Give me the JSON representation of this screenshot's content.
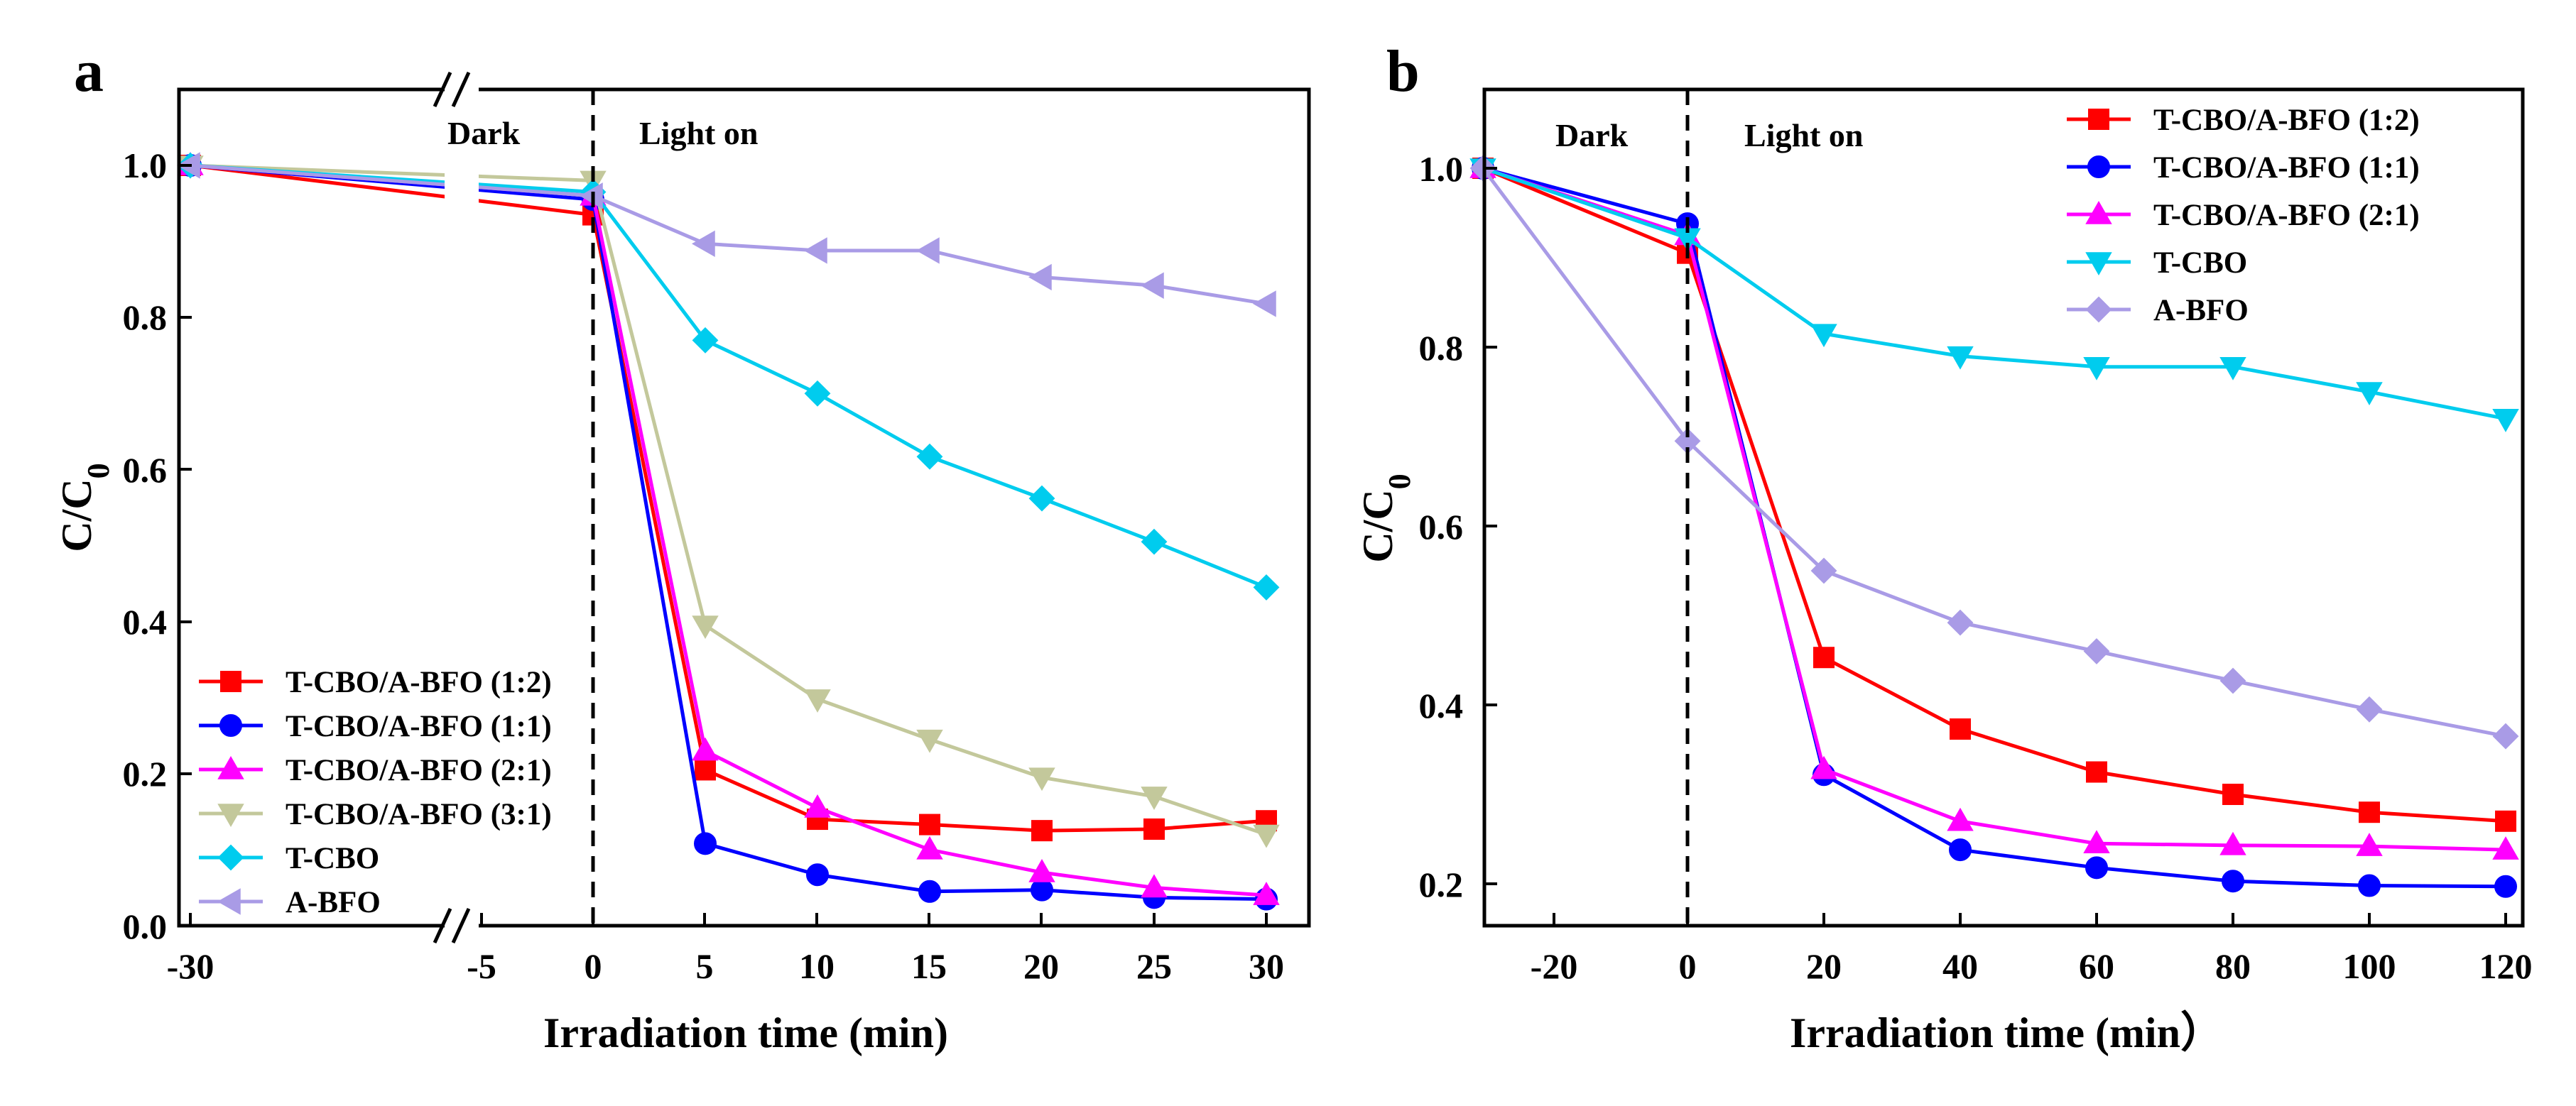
{
  "chart_data": [
    {
      "panel": "a",
      "type": "line",
      "xlabel": "Irradiation time (min)",
      "ylabel": "C/C0",
      "ylim": [
        0,
        1.1
      ],
      "y_ticks": [
        "0.0",
        "0.2",
        "0.4",
        "0.6",
        "0.8",
        "1.0"
      ],
      "x_ticks": [
        "-30",
        "-5",
        "0",
        "5",
        "10",
        "15",
        "20",
        "25",
        "30"
      ],
      "axis_break": "-30 to -5",
      "annotations": [
        "Dark",
        "Light on"
      ],
      "legend_position": "lower-left",
      "x": [
        -30,
        0,
        5,
        10,
        15,
        20,
        25,
        30
      ],
      "series": [
        {
          "name": "T-CBO/A-BFO (1:2)",
          "color": "#ff0000",
          "marker": "square",
          "values": [
            1.0,
            0.935,
            0.205,
            0.14,
            0.133,
            0.125,
            0.127,
            0.138
          ]
        },
        {
          "name": "T-CBO/A-BFO (1:1)",
          "color": "#0000ff",
          "marker": "circle",
          "values": [
            1.0,
            0.955,
            0.108,
            0.067,
            0.045,
            0.047,
            0.037,
            0.035
          ]
        },
        {
          "name": "T-CBO/A-BFO (2:1)",
          "color": "#ff00ff",
          "marker": "triangle-up",
          "values": [
            1.0,
            0.96,
            0.23,
            0.155,
            0.1,
            0.07,
            0.05,
            0.04
          ]
        },
        {
          "name": "T-CBO/A-BFO (3:1)",
          "color": "#c3c89b",
          "marker": "triangle-down",
          "values": [
            1.0,
            0.98,
            0.395,
            0.298,
            0.245,
            0.195,
            0.17,
            0.12
          ]
        },
        {
          "name": "T-CBO",
          "color": "#00ccee",
          "marker": "diamond",
          "values": [
            1.0,
            0.965,
            0.77,
            0.7,
            0.617,
            0.562,
            0.505,
            0.445
          ]
        },
        {
          "name": "A-BFO",
          "color": "#a99be6",
          "marker": "triangle-left",
          "values": [
            1.0,
            0.96,
            0.897,
            0.888,
            0.888,
            0.853,
            0.842,
            0.818
          ]
        }
      ]
    },
    {
      "panel": "b",
      "type": "line",
      "xlabel": "Irradiation time (min）",
      "ylabel": "C/C0",
      "ylim": [
        0.15,
        1.1
      ],
      "xlim": [
        -30,
        122
      ],
      "y_ticks": [
        "0.2",
        "0.4",
        "0.6",
        "0.8",
        "1.0"
      ],
      "x_ticks": [
        "-20",
        "0",
        "20",
        "40",
        "60",
        "80",
        "100",
        "120"
      ],
      "annotations": [
        "Dark",
        "Light on"
      ],
      "legend_position": "top-right",
      "x": [
        -30,
        0,
        20,
        40,
        60,
        80,
        100,
        120
      ],
      "series": [
        {
          "name": "T-CBO/A-BFO (1:2)",
          "color": "#ff0000",
          "marker": "square",
          "values": [
            1.0,
            0.905,
            0.453,
            0.373,
            0.325,
            0.3,
            0.28,
            0.27
          ]
        },
        {
          "name": "T-CBO/A-BFO (1:1)",
          "color": "#0000ff",
          "marker": "circle",
          "values": [
            1.0,
            0.938,
            0.322,
            0.238,
            0.218,
            0.203,
            0.198,
            0.197
          ]
        },
        {
          "name": "T-CBO/A-BFO (2:1)",
          "color": "#ff00ff",
          "marker": "triangle-up",
          "values": [
            1.0,
            0.925,
            0.328,
            0.27,
            0.245,
            0.243,
            0.242,
            0.238
          ]
        },
        {
          "name": "T-CBO",
          "color": "#00ccee",
          "marker": "triangle-down",
          "values": [
            1.0,
            0.922,
            0.815,
            0.79,
            0.778,
            0.778,
            0.75,
            0.72
          ]
        },
        {
          "name": "A-BFO",
          "color": "#a99be6",
          "marker": "diamond",
          "values": [
            1.0,
            0.695,
            0.55,
            0.492,
            0.46,
            0.427,
            0.395,
            0.365
          ]
        }
      ]
    }
  ]
}
